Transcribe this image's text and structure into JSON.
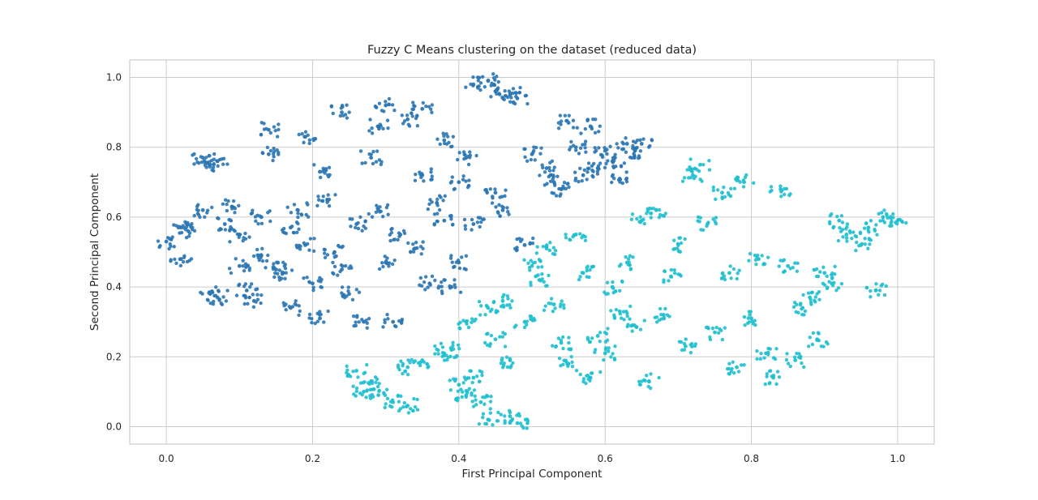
{
  "chart_data": {
    "type": "scatter",
    "title": "Fuzzy C Means clustering on the dataset (reduced data)",
    "xlabel": "First Principal Component",
    "ylabel": "Second Principal Component",
    "xlim": [
      -0.05,
      1.05
    ],
    "ylim": [
      -0.05,
      1.05
    ],
    "xticks": [
      0.0,
      0.2,
      0.4,
      0.6,
      0.8,
      1.0
    ],
    "xtick_labels": [
      "0.0",
      "0.2",
      "0.4",
      "0.6",
      "0.8",
      "1.0"
    ],
    "yticks": [
      0.0,
      0.2,
      0.4,
      0.6,
      0.8,
      1.0
    ],
    "ytick_labels": [
      "0.0",
      "0.2",
      "0.4",
      "0.6",
      "0.8",
      "1.0"
    ],
    "grid": true,
    "series": [
      {
        "color": "#2a75b3",
        "points": [
          [
            0.0,
            0.53
          ],
          [
            0.02,
            0.57
          ],
          [
            0.03,
            0.56
          ],
          [
            0.02,
            0.48
          ],
          [
            0.05,
            0.77
          ],
          [
            0.06,
            0.75
          ],
          [
            0.07,
            0.76
          ],
          [
            0.05,
            0.62
          ],
          [
            0.06,
            0.38
          ],
          [
            0.07,
            0.37
          ],
          [
            0.08,
            0.58
          ],
          [
            0.09,
            0.63
          ],
          [
            0.1,
            0.55
          ],
          [
            0.1,
            0.46
          ],
          [
            0.11,
            0.39
          ],
          [
            0.12,
            0.36
          ],
          [
            0.13,
            0.6
          ],
          [
            0.13,
            0.49
          ],
          [
            0.14,
            0.85
          ],
          [
            0.14,
            0.78
          ],
          [
            0.15,
            0.45
          ],
          [
            0.16,
            0.44
          ],
          [
            0.17,
            0.57
          ],
          [
            0.17,
            0.34
          ],
          [
            0.18,
            0.62
          ],
          [
            0.19,
            0.83
          ],
          [
            0.19,
            0.52
          ],
          [
            0.2,
            0.41
          ],
          [
            0.21,
            0.73
          ],
          [
            0.21,
            0.31
          ],
          [
            0.22,
            0.65
          ],
          [
            0.23,
            0.5
          ],
          [
            0.24,
            0.9
          ],
          [
            0.24,
            0.45
          ],
          [
            0.25,
            0.38
          ],
          [
            0.26,
            0.58
          ],
          [
            0.27,
            0.3
          ],
          [
            0.28,
            0.77
          ],
          [
            0.29,
            0.62
          ],
          [
            0.29,
            0.86
          ],
          [
            0.3,
            0.92
          ],
          [
            0.3,
            0.47
          ],
          [
            0.31,
            0.3
          ],
          [
            0.32,
            0.55
          ],
          [
            0.33,
            0.88
          ],
          [
            0.34,
            0.51
          ],
          [
            0.35,
            0.72
          ],
          [
            0.35,
            0.91
          ],
          [
            0.36,
            0.41
          ],
          [
            0.37,
            0.64
          ],
          [
            0.38,
            0.82
          ],
          [
            0.38,
            0.59
          ],
          [
            0.39,
            0.4
          ],
          [
            0.4,
            0.47
          ],
          [
            0.4,
            0.7
          ],
          [
            0.41,
            0.77
          ],
          [
            0.42,
            0.58
          ],
          [
            0.42,
            0.98
          ],
          [
            0.44,
            0.99
          ],
          [
            0.45,
            0.67
          ],
          [
            0.45,
            0.96
          ],
          [
            0.46,
            0.62
          ],
          [
            0.47,
            0.95
          ],
          [
            0.48,
            0.94
          ],
          [
            0.49,
            0.52
          ],
          [
            0.5,
            0.78
          ],
          [
            0.52,
            0.74
          ],
          [
            0.53,
            0.7
          ],
          [
            0.54,
            0.68
          ],
          [
            0.55,
            0.87
          ],
          [
            0.56,
            0.8
          ],
          [
            0.57,
            0.72
          ],
          [
            0.58,
            0.86
          ],
          [
            0.59,
            0.74
          ],
          [
            0.6,
            0.79
          ],
          [
            0.61,
            0.76
          ],
          [
            0.62,
            0.71
          ],
          [
            0.63,
            0.81
          ],
          [
            0.64,
            0.77
          ],
          [
            0.65,
            0.81
          ]
        ]
      },
      {
        "color": "#1fbfcf",
        "points": [
          [
            0.26,
            0.16
          ],
          [
            0.27,
            0.1
          ],
          [
            0.28,
            0.13
          ],
          [
            0.29,
            0.09
          ],
          [
            0.31,
            0.07
          ],
          [
            0.33,
            0.06
          ],
          [
            0.33,
            0.17
          ],
          [
            0.35,
            0.19
          ],
          [
            0.38,
            0.21
          ],
          [
            0.39,
            0.22
          ],
          [
            0.4,
            0.12
          ],
          [
            0.41,
            0.09
          ],
          [
            0.41,
            0.3
          ],
          [
            0.42,
            0.14
          ],
          [
            0.43,
            0.07
          ],
          [
            0.44,
            0.34
          ],
          [
            0.44,
            0.02
          ],
          [
            0.45,
            0.25
          ],
          [
            0.46,
            0.36
          ],
          [
            0.47,
            0.19
          ],
          [
            0.47,
            0.03
          ],
          [
            0.48,
            0.01
          ],
          [
            0.49,
            0.3
          ],
          [
            0.5,
            0.46
          ],
          [
            0.51,
            0.42
          ],
          [
            0.52,
            0.51
          ],
          [
            0.53,
            0.35
          ],
          [
            0.54,
            0.24
          ],
          [
            0.55,
            0.18
          ],
          [
            0.56,
            0.55
          ],
          [
            0.57,
            0.44
          ],
          [
            0.58,
            0.14
          ],
          [
            0.59,
            0.26
          ],
          [
            0.6,
            0.21
          ],
          [
            0.61,
            0.4
          ],
          [
            0.62,
            0.33
          ],
          [
            0.63,
            0.47
          ],
          [
            0.64,
            0.29
          ],
          [
            0.65,
            0.59
          ],
          [
            0.66,
            0.13
          ],
          [
            0.67,
            0.62
          ],
          [
            0.68,
            0.32
          ],
          [
            0.69,
            0.43
          ],
          [
            0.7,
            0.52
          ],
          [
            0.71,
            0.23
          ],
          [
            0.72,
            0.72
          ],
          [
            0.73,
            0.75
          ],
          [
            0.74,
            0.58
          ],
          [
            0.75,
            0.27
          ],
          [
            0.76,
            0.67
          ],
          [
            0.77,
            0.44
          ],
          [
            0.78,
            0.17
          ],
          [
            0.79,
            0.7
          ],
          [
            0.8,
            0.31
          ],
          [
            0.81,
            0.48
          ],
          [
            0.82,
            0.21
          ],
          [
            0.83,
            0.14
          ],
          [
            0.84,
            0.68
          ],
          [
            0.85,
            0.46
          ],
          [
            0.86,
            0.19
          ],
          [
            0.87,
            0.34
          ],
          [
            0.88,
            0.37
          ],
          [
            0.89,
            0.25
          ],
          [
            0.9,
            0.44
          ],
          [
            0.91,
            0.41
          ],
          [
            0.92,
            0.59
          ],
          [
            0.93,
            0.55
          ],
          [
            0.95,
            0.52
          ],
          [
            0.96,
            0.57
          ],
          [
            0.97,
            0.39
          ],
          [
            0.98,
            0.6
          ],
          [
            1.0,
            0.59
          ]
        ]
      }
    ]
  }
}
